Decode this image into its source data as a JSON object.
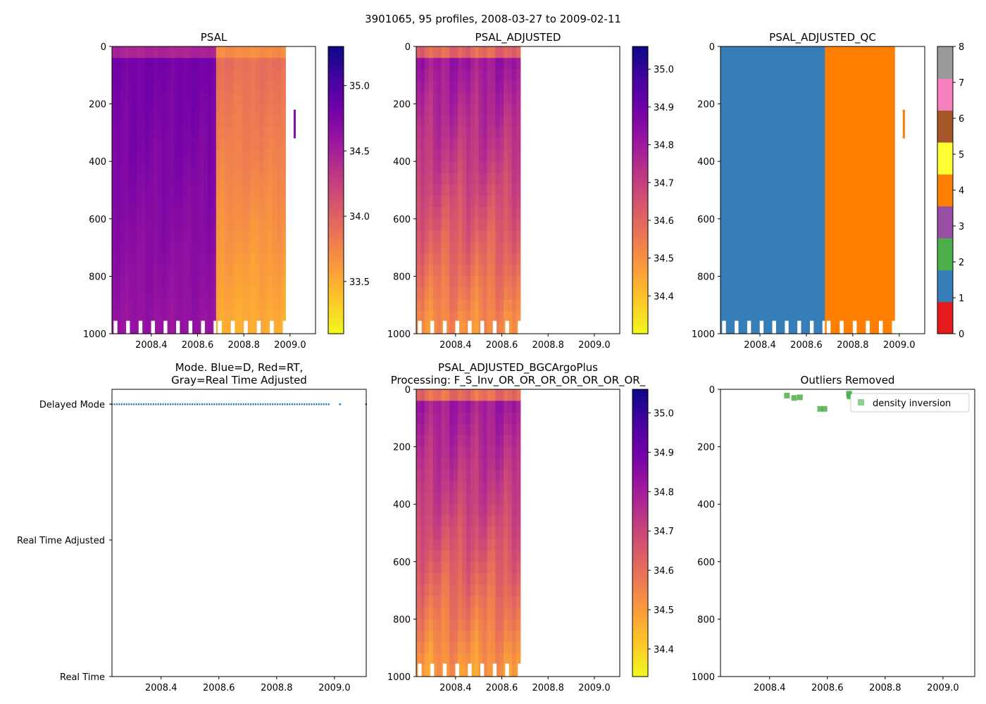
{
  "suptitle": "3901065, 95 profiles, 2008-03-27 to 2009-02-11",
  "colors": {
    "plasma": [
      "#0d0887",
      "#46039f",
      "#7201a8",
      "#9c179e",
      "#bd3786",
      "#d8576b",
      "#ed7953",
      "#fb9f3a",
      "#fdca26",
      "#f0f921"
    ],
    "qc": [
      "#e41a1c",
      "#377eb8",
      "#4daf4a",
      "#984ea3",
      "#ff7f00",
      "#ffff33",
      "#a65628",
      "#f781bf",
      "#999999"
    ],
    "mode_points": "#1f77b4",
    "outlier": "#4daf4a"
  },
  "chart_data": [
    {
      "id": "psal",
      "type": "heatmap",
      "title": "PSAL",
      "xlim": [
        2008.23,
        2009.11
      ],
      "ylim": [
        1000,
        0
      ],
      "xticks": [
        "2008.4",
        "2008.6",
        "2008.8",
        "2009.0"
      ],
      "yticks": [
        "0",
        "200",
        "400",
        "600",
        "800",
        "1000"
      ],
      "colorbar": {
        "min": 33.1,
        "max": 35.3,
        "ticks": [
          "33.5",
          "34.0",
          "34.5",
          "35.0"
        ],
        "tick_values": [
          33.5,
          34.0,
          34.5,
          35.0
        ]
      },
      "segments": [
        {
          "x": [
            2008.23,
            2008.68
          ],
          "surface": 34.3,
          "mid": 34.8,
          "deep": 34.6
        },
        {
          "x": [
            2008.68,
            2008.98
          ],
          "surface": 33.6,
          "mid": 33.9,
          "deep": 33.5
        }
      ],
      "isolated_profile": {
        "x": 2009.02,
        "depth": [
          220,
          320
        ],
        "value": 34.7
      }
    },
    {
      "id": "psal_adjusted",
      "type": "heatmap",
      "title": "PSAL_ADJUSTED",
      "xlim": [
        2008.23,
        2009.11
      ],
      "ylim": [
        1000,
        0
      ],
      "xticks": [
        "2008.4",
        "2008.6",
        "2008.8",
        "2009.0"
      ],
      "yticks": [
        "0",
        "200",
        "400",
        "600",
        "800",
        "1000"
      ],
      "colorbar": {
        "min": 34.3,
        "max": 35.06,
        "ticks": [
          "34.4",
          "34.5",
          "34.6",
          "34.7",
          "34.8",
          "34.9",
          "35.0"
        ],
        "tick_values": [
          34.4,
          34.5,
          34.6,
          34.7,
          34.8,
          34.9,
          35.0
        ]
      },
      "segments": [
        {
          "x": [
            2008.23,
            2008.68
          ],
          "surface": 34.5,
          "mid": 34.8,
          "deep": 34.5
        }
      ]
    },
    {
      "id": "psal_adjusted_qc",
      "type": "heatmap",
      "title": "PSAL_ADJUSTED_QC",
      "xlim": [
        2008.23,
        2009.11
      ],
      "ylim": [
        1000,
        0
      ],
      "xticks": [
        "2008.4",
        "2008.6",
        "2008.8",
        "2009.0"
      ],
      "yticks": [
        "0",
        "200",
        "400",
        "600",
        "800",
        "1000"
      ],
      "colorbar": {
        "min": 0,
        "max": 8,
        "ticks": [
          "0",
          "1",
          "2",
          "3",
          "4",
          "5",
          "6",
          "7",
          "8"
        ],
        "tick_values": [
          0,
          1,
          2,
          3,
          4,
          5,
          6,
          7,
          8
        ]
      },
      "segments": [
        {
          "x": [
            2008.23,
            2008.68
          ],
          "flag": 1
        },
        {
          "x": [
            2008.68,
            2008.98
          ],
          "flag": 4
        }
      ],
      "isolated_profile": {
        "x": 2009.02,
        "depth": [
          220,
          320
        ],
        "flag": 4
      }
    },
    {
      "id": "mode",
      "type": "scatter",
      "title": "Mode. Blue=D, Red=RT,",
      "title_line2": "Gray=Real Time Adjusted",
      "xlim": [
        2008.23,
        2009.11
      ],
      "xticks": [
        "2008.4",
        "2008.6",
        "2008.8",
        "2009.0"
      ],
      "ycategories": [
        "Real Time",
        "Real Time Adjusted",
        "Delayed Mode"
      ],
      "points": {
        "category": "Delayed Mode",
        "x_start": 2008.23,
        "x_end": 2008.98,
        "count": 90,
        "extra_x": [
          2009.02,
          2009.11
        ]
      }
    },
    {
      "id": "bgc",
      "type": "heatmap",
      "title": "PSAL_ADJUSTED_BGCArgoPlus",
      "title_line2": "Processing: F_S_Inv_OR_OR_OR_OR_OR_OR_OR_",
      "xlim": [
        2008.23,
        2009.11
      ],
      "ylim": [
        1000,
        0
      ],
      "xticks": [
        "2008.4",
        "2008.6",
        "2008.8",
        "2009.0"
      ],
      "yticks": [
        "0",
        "200",
        "400",
        "600",
        "800",
        "1000"
      ],
      "colorbar": {
        "min": 34.33,
        "max": 35.06,
        "ticks": [
          "34.4",
          "34.5",
          "34.6",
          "34.7",
          "34.8",
          "34.9",
          "35.0"
        ],
        "tick_values": [
          34.4,
          34.5,
          34.6,
          34.7,
          34.8,
          34.9,
          35.0
        ]
      },
      "segments": [
        {
          "x": [
            2008.23,
            2008.68
          ],
          "surface": 34.5,
          "mid": 34.8,
          "deep": 34.5
        }
      ]
    },
    {
      "id": "outliers",
      "type": "scatter",
      "title": "Outliers Removed",
      "xlim": [
        2008.23,
        2009.11
      ],
      "ylim": [
        1000,
        0
      ],
      "xticks": [
        "2008.4",
        "2008.6",
        "2008.8",
        "2009.0"
      ],
      "yticks": [
        "0",
        "200",
        "400",
        "600",
        "800",
        "1000"
      ],
      "legend": "density inversion",
      "legend_loc": "upper right",
      "points": [
        {
          "x": 2008.46,
          "y": 22
        },
        {
          "x": 2008.485,
          "y": 30
        },
        {
          "x": 2008.505,
          "y": 28
        },
        {
          "x": 2008.575,
          "y": 68
        },
        {
          "x": 2008.59,
          "y": 68
        },
        {
          "x": 2008.675,
          "y": 15
        },
        {
          "x": 2008.676,
          "y": 20
        },
        {
          "x": 2008.677,
          "y": 25
        }
      ]
    }
  ]
}
